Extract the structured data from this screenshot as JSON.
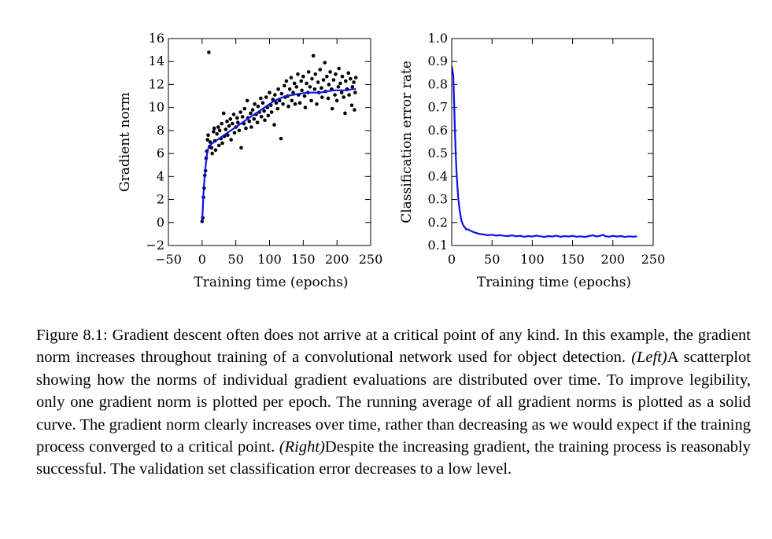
{
  "chart_data": [
    {
      "type": "scatter",
      "xlabel": "Training time (epochs)",
      "ylabel": "Gradient norm",
      "xlim": [
        -50,
        250
      ],
      "ylim": [
        -2,
        16
      ],
      "xticks": [
        -50,
        0,
        50,
        100,
        150,
        200,
        250
      ],
      "yticks": [
        -2,
        0,
        2,
        4,
        6,
        8,
        10,
        12,
        14,
        16
      ],
      "grid": false,
      "series": [
        {
          "kind": "scatter",
          "color": "#000000",
          "points": [
            [
              0,
              0.1
            ],
            [
              1,
              0.4
            ],
            [
              2,
              2.2
            ],
            [
              3,
              3.0
            ],
            [
              4,
              4.1
            ],
            [
              5,
              4.5
            ],
            [
              6,
              5.6
            ],
            [
              7,
              6.2
            ],
            [
              8,
              7.2
            ],
            [
              9,
              7.6
            ],
            [
              10,
              14.8
            ],
            [
              11,
              6.6
            ],
            [
              12,
              7.0
            ],
            [
              14,
              6.5
            ],
            [
              15,
              6.0
            ],
            [
              17,
              7.9
            ],
            [
              18,
              8.2
            ],
            [
              19,
              7.1
            ],
            [
              20,
              6.3
            ],
            [
              22,
              7.7
            ],
            [
              24,
              8.3
            ],
            [
              25,
              6.7
            ],
            [
              26,
              8.0
            ],
            [
              28,
              7.3
            ],
            [
              29,
              8.6
            ],
            [
              30,
              6.9
            ],
            [
              32,
              9.5
            ],
            [
              33,
              7.5
            ],
            [
              35,
              8.1
            ],
            [
              37,
              8.8
            ],
            [
              38,
              7.6
            ],
            [
              40,
              8.4
            ],
            [
              42,
              9.0
            ],
            [
              43,
              7.2
            ],
            [
              45,
              8.6
            ],
            [
              47,
              9.4
            ],
            [
              48,
              7.8
            ],
            [
              50,
              8.3
            ],
            [
              52,
              9.1
            ],
            [
              53,
              8.7
            ],
            [
              55,
              8.0
            ],
            [
              57,
              9.6
            ],
            [
              58,
              6.5
            ],
            [
              60,
              9.2
            ],
            [
              62,
              8.6
            ],
            [
              63,
              9.9
            ],
            [
              65,
              8.2
            ],
            [
              67,
              10.6
            ],
            [
              68,
              9.1
            ],
            [
              70,
              8.8
            ],
            [
              72,
              9.5
            ],
            [
              73,
              8.3
            ],
            [
              75,
              9.8
            ],
            [
              77,
              9.0
            ],
            [
              78,
              10.3
            ],
            [
              80,
              9.4
            ],
            [
              82,
              8.7
            ],
            [
              83,
              10.1
            ],
            [
              85,
              9.6
            ],
            [
              87,
              10.8
            ],
            [
              88,
              9.2
            ],
            [
              90,
              10.4
            ],
            [
              92,
              9.7
            ],
            [
              93,
              8.9
            ],
            [
              95,
              10.9
            ],
            [
              97,
              10.0
            ],
            [
              98,
              9.3
            ],
            [
              100,
              11.3
            ],
            [
              102,
              10.2
            ],
            [
              103,
              9.6
            ],
            [
              105,
              10.7
            ],
            [
              107,
              8.5
            ],
            [
              108,
              11.1
            ],
            [
              110,
              10.4
            ],
            [
              112,
              9.9
            ],
            [
              113,
              11.6
            ],
            [
              115,
              10.6
            ],
            [
              117,
              7.3
            ],
            [
              118,
              11.2
            ],
            [
              120,
              10.3
            ],
            [
              122,
              11.9
            ],
            [
              123,
              10.9
            ],
            [
              125,
              12.3
            ],
            [
              127,
              11.0
            ],
            [
              128,
              10.1
            ],
            [
              130,
              11.6
            ],
            [
              132,
              12.6
            ],
            [
              133,
              10.6
            ],
            [
              135,
              11.3
            ],
            [
              137,
              12.1
            ],
            [
              138,
              10.3
            ],
            [
              140,
              11.8
            ],
            [
              142,
              12.9
            ],
            [
              143,
              11.1
            ],
            [
              145,
              10.4
            ],
            [
              147,
              12.3
            ],
            [
              148,
              11.5
            ],
            [
              150,
              12.7
            ],
            [
              152,
              11.0
            ],
            [
              153,
              10.0
            ],
            [
              155,
              12.1
            ],
            [
              157,
              11.3
            ],
            [
              158,
              13.1
            ],
            [
              160,
              11.8
            ],
            [
              162,
              10.6
            ],
            [
              163,
              12.5
            ],
            [
              165,
              14.5
            ],
            [
              167,
              11.6
            ],
            [
              168,
              12.9
            ],
            [
              170,
              10.3
            ],
            [
              172,
              12.2
            ],
            [
              173,
              11.3
            ],
            [
              175,
              13.3
            ],
            [
              177,
              11.7
            ],
            [
              178,
              10.9
            ],
            [
              180,
              12.4
            ],
            [
              182,
              13.9
            ],
            [
              183,
              11.4
            ],
            [
              185,
              12.7
            ],
            [
              187,
              10.8
            ],
            [
              188,
              12.0
            ],
            [
              190,
              13.1
            ],
            [
              192,
              11.6
            ],
            [
              193,
              9.9
            ],
            [
              195,
              12.4
            ],
            [
              197,
              11.1
            ],
            [
              198,
              12.9
            ],
            [
              200,
              10.6
            ],
            [
              202,
              11.8
            ],
            [
              203,
              13.4
            ],
            [
              205,
              12.1
            ],
            [
              207,
              11.3
            ],
            [
              208,
              12.7
            ],
            [
              210,
              10.9
            ],
            [
              212,
              9.5
            ],
            [
              213,
              12.3
            ],
            [
              215,
              11.6
            ],
            [
              217,
              13.0
            ],
            [
              218,
              11.1
            ],
            [
              220,
              12.5
            ],
            [
              222,
              10.2
            ],
            [
              223,
              11.8
            ],
            [
              225,
              12.2
            ],
            [
              226,
              9.8
            ],
            [
              227,
              11.3
            ],
            [
              228,
              12.6
            ]
          ]
        },
        {
          "kind": "line",
          "color": "#1010ee",
          "points": [
            [
              0,
              0.1
            ],
            [
              1,
              1.2
            ],
            [
              2,
              2.4
            ],
            [
              3,
              3.4
            ],
            [
              4,
              4.2
            ],
            [
              5,
              4.8
            ],
            [
              6,
              5.3
            ],
            [
              7,
              5.8
            ],
            [
              8,
              6.2
            ],
            [
              10,
              6.6
            ],
            [
              13,
              6.8
            ],
            [
              18,
              7.0
            ],
            [
              25,
              7.3
            ],
            [
              35,
              7.7
            ],
            [
              45,
              8.1
            ],
            [
              55,
              8.5
            ],
            [
              65,
              8.9
            ],
            [
              75,
              9.3
            ],
            [
              85,
              9.7
            ],
            [
              95,
              10.1
            ],
            [
              105,
              10.5
            ],
            [
              115,
              10.8
            ],
            [
              125,
              11.0
            ],
            [
              135,
              11.1
            ],
            [
              145,
              11.2
            ],
            [
              155,
              11.3
            ],
            [
              165,
              11.3
            ],
            [
              175,
              11.3
            ],
            [
              185,
              11.4
            ],
            [
              195,
              11.5
            ],
            [
              205,
              11.5
            ],
            [
              215,
              11.5
            ],
            [
              222,
              11.6
            ],
            [
              228,
              11.6
            ]
          ]
        }
      ]
    },
    {
      "type": "line",
      "xlabel": "Training time (epochs)",
      "ylabel": "Classification error rate",
      "xlim": [
        0,
        250
      ],
      "ylim": [
        0.1,
        1.0
      ],
      "xticks": [
        0,
        50,
        100,
        150,
        200,
        250
      ],
      "yticks": [
        0.1,
        0.2,
        0.3,
        0.4,
        0.5,
        0.6,
        0.7,
        0.8,
        0.9,
        1.0
      ],
      "grid": false,
      "series": [
        {
          "color": "#1010ee",
          "points": [
            [
              0,
              0.88
            ],
            [
              1,
              0.86
            ],
            [
              2,
              0.84
            ],
            [
              3,
              0.72
            ],
            [
              4,
              0.6
            ],
            [
              5,
              0.5
            ],
            [
              6,
              0.42
            ],
            [
              7,
              0.36
            ],
            [
              8,
              0.31
            ],
            [
              10,
              0.25
            ],
            [
              12,
              0.21
            ],
            [
              14,
              0.19
            ],
            [
              16,
              0.18
            ],
            [
              18,
              0.17
            ],
            [
              20,
              0.17
            ],
            [
              23,
              0.165
            ],
            [
              26,
              0.16
            ],
            [
              30,
              0.155
            ],
            [
              35,
              0.15
            ],
            [
              40,
              0.148
            ],
            [
              45,
              0.145
            ],
            [
              50,
              0.147
            ],
            [
              55,
              0.143
            ],
            [
              60,
              0.145
            ],
            [
              65,
              0.142
            ],
            [
              70,
              0.141
            ],
            [
              75,
              0.144
            ],
            [
              80,
              0.14
            ],
            [
              85,
              0.142
            ],
            [
              90,
              0.138
            ],
            [
              95,
              0.141
            ],
            [
              100,
              0.139
            ],
            [
              105,
              0.143
            ],
            [
              110,
              0.14
            ],
            [
              115,
              0.137
            ],
            [
              120,
              0.141
            ],
            [
              125,
              0.139
            ],
            [
              130,
              0.143
            ],
            [
              135,
              0.138
            ],
            [
              140,
              0.141
            ],
            [
              145,
              0.139
            ],
            [
              150,
              0.142
            ],
            [
              155,
              0.138
            ],
            [
              160,
              0.14
            ],
            [
              165,
              0.137
            ],
            [
              170,
              0.141
            ],
            [
              175,
              0.144
            ],
            [
              180,
              0.139
            ],
            [
              185,
              0.143
            ],
            [
              188,
              0.147
            ],
            [
              190,
              0.141
            ],
            [
              195,
              0.138
            ],
            [
              200,
              0.142
            ],
            [
              205,
              0.139
            ],
            [
              210,
              0.141
            ],
            [
              215,
              0.137
            ],
            [
              220,
              0.14
            ],
            [
              225,
              0.138
            ],
            [
              230,
              0.14
            ]
          ]
        }
      ]
    }
  ],
  "caption": {
    "prefix": "Figure 8.1: Gradient descent often does not arrive at a critical point of any kind. In this example, the gradient norm increases throughout training of a convolutional network used for object detection. ",
    "left_label": "(Left)",
    "middle": "A scatterplot showing how the norms of individual gradient evaluations are distributed over time. To improve legibility, only one gradient norm is plotted per epoch. The running average of all gradient norms is plotted as a solid curve. The gradient norm clearly increases over time, rather than decreasing as we would expect if the training process converged to a critical point. ",
    "right_label": "(Right)",
    "suffix": "Despite the increasing gradient, the training process is reasonably successful. The validation set classification error decreases to a low level."
  }
}
